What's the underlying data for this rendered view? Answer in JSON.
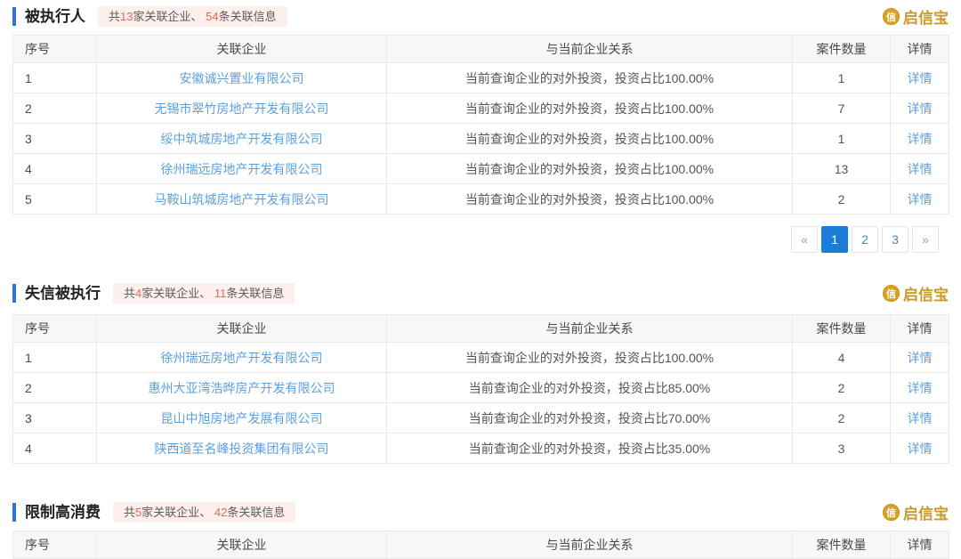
{
  "logo": {
    "brand": "启信宝",
    "icon_char": "信"
  },
  "pagination": {
    "prev": "«",
    "next": "»",
    "pages": [
      "1",
      "2",
      "3"
    ],
    "active_page": "1"
  },
  "sections": [
    {
      "title": "被执行人",
      "badge": {
        "p0": "共",
        "n1": "13",
        "p1": "家关联企业、 ",
        "n2": "54",
        "p2": "条关联信息"
      },
      "headers": [
        "序号",
        "关联企业",
        "与当前企业关系",
        "案件数量",
        "详情"
      ],
      "detail_label": "详情",
      "rows": [
        {
          "index": "1",
          "company": "安徽诚兴置业有限公司",
          "relation": "当前查询企业的对外投资，投资占比100.00%",
          "cases": "1"
        },
        {
          "index": "2",
          "company": "无锡市翠竹房地产开发有限公司",
          "relation": "当前查询企业的对外投资，投资占比100.00%",
          "cases": "7"
        },
        {
          "index": "3",
          "company": "绥中筑城房地产开发有限公司",
          "relation": "当前查询企业的对外投资，投资占比100.00%",
          "cases": "1"
        },
        {
          "index": "4",
          "company": "徐州瑞远房地产开发有限公司",
          "relation": "当前查询企业的对外投资，投资占比100.00%",
          "cases": "13"
        },
        {
          "index": "5",
          "company": "马鞍山筑城房地产开发有限公司",
          "relation": "当前查询企业的对外投资，投资占比100.00%",
          "cases": "2"
        }
      ]
    },
    {
      "title": "失信被执行",
      "badge": {
        "p0": "共",
        "n1": "4",
        "p1": "家关联企业、 ",
        "n2": "11",
        "p2": "条关联信息"
      },
      "headers": [
        "序号",
        "关联企业",
        "与当前企业关系",
        "案件数量",
        "详情"
      ],
      "detail_label": "详情",
      "rows": [
        {
          "index": "1",
          "company": "徐州瑞远房地产开发有限公司",
          "relation": "当前查询企业的对外投资，投资占比100.00%",
          "cases": "4"
        },
        {
          "index": "2",
          "company": "惠州大亚湾浩晔房产开发有限公司",
          "relation": "当前查询企业的对外投资，投资占比85.00%",
          "cases": "2"
        },
        {
          "index": "3",
          "company": "昆山中旭房地产发展有限公司",
          "relation": "当前查询企业的对外投资，投资占比70.00%",
          "cases": "2"
        },
        {
          "index": "4",
          "company": "陕西道至名峰投资集团有限公司",
          "relation": "当前查询企业的对外投资，投资占比35.00%",
          "cases": "3"
        }
      ]
    },
    {
      "title": "限制高消费",
      "badge": {
        "p0": "共",
        "n1": "5",
        "p1": "家关联企业、 ",
        "n2": "42",
        "p2": "条关联信息"
      },
      "headers": [
        "序号",
        "关联企业",
        "与当前企业关系",
        "案件数量",
        "详情"
      ]
    }
  ]
}
